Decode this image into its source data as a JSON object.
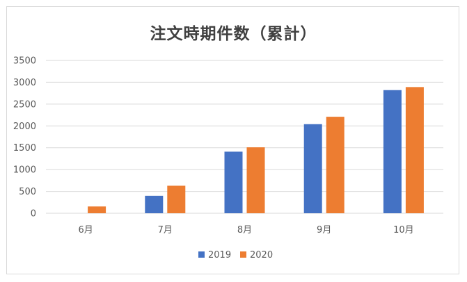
{
  "chart_data": {
    "type": "bar",
    "title": "注文時期件数（累計）",
    "categories": [
      "6月",
      "7月",
      "8月",
      "9月",
      "10月"
    ],
    "series": [
      {
        "name": "2019",
        "color": "#4472c4",
        "values": [
          0,
          400,
          1410,
          2040,
          2820
        ]
      },
      {
        "name": "2020",
        "color": "#ed7d31",
        "values": [
          155,
          630,
          1510,
          2210,
          2890
        ]
      }
    ],
    "y_ticks": [
      "0",
      "500",
      "1000",
      "1500",
      "2000",
      "2500",
      "3000",
      "3500"
    ],
    "ylim": [
      0,
      3500
    ],
    "grid": true,
    "legend_position": "bottom"
  }
}
